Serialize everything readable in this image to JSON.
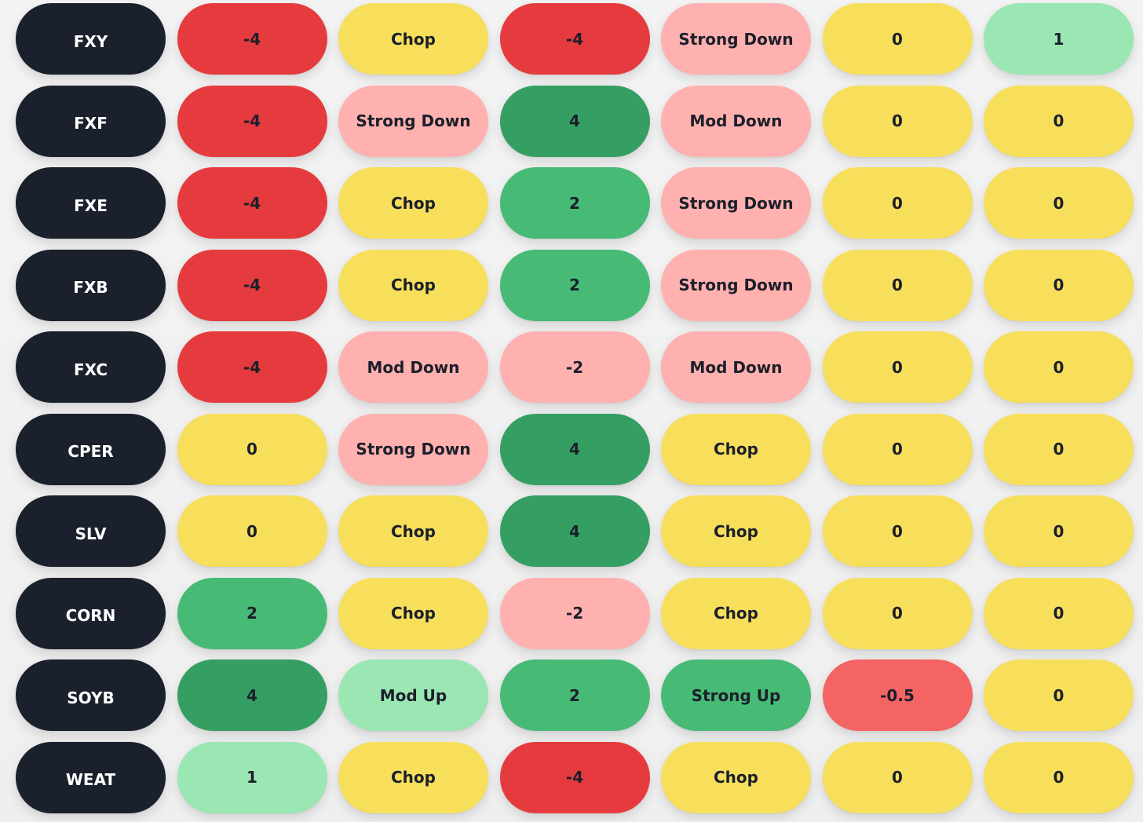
{
  "rows": [
    {
      "ticker": "FXY",
      "cells": [
        {
          "text": "-4",
          "color": "#e53b3e"
        },
        {
          "text": "Chop",
          "color": "#f7df5b"
        },
        {
          "text": "-4",
          "color": "#e53b3e"
        },
        {
          "text": "Strong Down",
          "color": "#ffb1af"
        },
        {
          "text": "0",
          "color": "#f7df5b"
        },
        {
          "text": "1",
          "color": "#9be7b3"
        }
      ]
    },
    {
      "ticker": "FXF",
      "cells": [
        {
          "text": "-4",
          "color": "#e53b3e"
        },
        {
          "text": "Strong Down",
          "color": "#ffb1af"
        },
        {
          "text": "4",
          "color": "#359f63"
        },
        {
          "text": "Mod Down",
          "color": "#ffb1af"
        },
        {
          "text": "0",
          "color": "#f7df5b"
        },
        {
          "text": "0",
          "color": "#f7df5b"
        }
      ]
    },
    {
      "ticker": "FXE",
      "cells": [
        {
          "text": "-4",
          "color": "#e53b3e"
        },
        {
          "text": "Chop",
          "color": "#f7df5b"
        },
        {
          "text": "2",
          "color": "#47bb76"
        },
        {
          "text": "Strong Down",
          "color": "#ffb1af"
        },
        {
          "text": "0",
          "color": "#f7df5b"
        },
        {
          "text": "0",
          "color": "#f7df5b"
        }
      ]
    },
    {
      "ticker": "FXB",
      "cells": [
        {
          "text": "-4",
          "color": "#e53b3e"
        },
        {
          "text": "Chop",
          "color": "#f7df5b"
        },
        {
          "text": "2",
          "color": "#47bb76"
        },
        {
          "text": "Strong Down",
          "color": "#ffb1af"
        },
        {
          "text": "0",
          "color": "#f7df5b"
        },
        {
          "text": "0",
          "color": "#f7df5b"
        }
      ]
    },
    {
      "ticker": "FXC",
      "cells": [
        {
          "text": "-4",
          "color": "#e53b3e"
        },
        {
          "text": "Mod Down",
          "color": "#ffb1af"
        },
        {
          "text": "-2",
          "color": "#ffb1af"
        },
        {
          "text": "Mod Down",
          "color": "#ffb1af"
        },
        {
          "text": "0",
          "color": "#f7df5b"
        },
        {
          "text": "0",
          "color": "#f7df5b"
        }
      ]
    },
    {
      "ticker": "CPER",
      "cells": [
        {
          "text": "0",
          "color": "#f7df5b"
        },
        {
          "text": "Strong Down",
          "color": "#ffb1af"
        },
        {
          "text": "4",
          "color": "#359f63"
        },
        {
          "text": "Chop",
          "color": "#f7df5b"
        },
        {
          "text": "0",
          "color": "#f7df5b"
        },
        {
          "text": "0",
          "color": "#f7df5b"
        }
      ]
    },
    {
      "ticker": "SLV",
      "cells": [
        {
          "text": "0",
          "color": "#f7df5b"
        },
        {
          "text": "Chop",
          "color": "#f7df5b"
        },
        {
          "text": "4",
          "color": "#359f63"
        },
        {
          "text": "Chop",
          "color": "#f7df5b"
        },
        {
          "text": "0",
          "color": "#f7df5b"
        },
        {
          "text": "0",
          "color": "#f7df5b"
        }
      ]
    },
    {
      "ticker": "CORN",
      "cells": [
        {
          "text": "2",
          "color": "#47bb76"
        },
        {
          "text": "Chop",
          "color": "#f7df5b"
        },
        {
          "text": "-2",
          "color": "#ffb1af"
        },
        {
          "text": "Chop",
          "color": "#f7df5b"
        },
        {
          "text": "0",
          "color": "#f7df5b"
        },
        {
          "text": "0",
          "color": "#f7df5b"
        }
      ]
    },
    {
      "ticker": "SOYB",
      "cells": [
        {
          "text": "4",
          "color": "#359f63"
        },
        {
          "text": "Mod Up",
          "color": "#9be7b3"
        },
        {
          "text": "2",
          "color": "#47bb76"
        },
        {
          "text": "Strong Up",
          "color": "#47bb76"
        },
        {
          "text": "-0.5",
          "color": "#f46464"
        },
        {
          "text": "0",
          "color": "#f7df5b"
        }
      ]
    },
    {
      "ticker": "WEAT",
      "cells": [
        {
          "text": "1",
          "color": "#9be7b3"
        },
        {
          "text": "Chop",
          "color": "#f7df5b"
        },
        {
          "text": "-4",
          "color": "#e53b3e"
        },
        {
          "text": "Chop",
          "color": "#f7df5b"
        },
        {
          "text": "0",
          "color": "#f7df5b"
        },
        {
          "text": "0",
          "color": "#f7df5b"
        }
      ]
    }
  ]
}
